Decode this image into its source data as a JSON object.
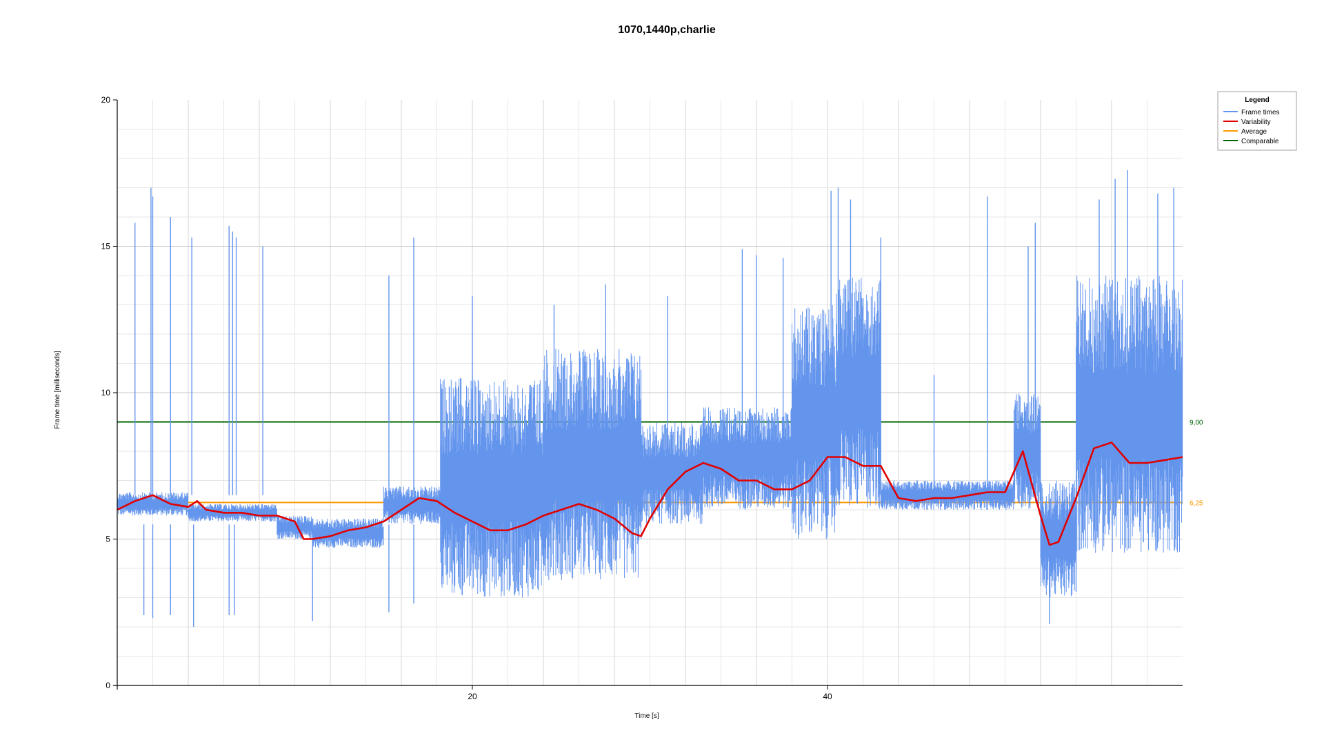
{
  "chart_data": {
    "type": "line",
    "title": "1070,1440p,charlie",
    "xlabel": "Time [s]",
    "ylabel": "Frame time [milliseconds]",
    "xlim": [
      0,
      60
    ],
    "ylim": [
      0,
      20
    ],
    "x_ticks": [
      20,
      40
    ],
    "y_ticks": [
      0,
      5,
      10,
      15,
      20
    ],
    "grid": true,
    "legend": {
      "title": "Legend",
      "placement": "top-right",
      "entries": [
        "Frame times",
        "Variability",
        "Average",
        "Comparable"
      ]
    },
    "series": [
      {
        "name": "Frame times",
        "color": "#6495ED",
        "segments": [
          {
            "x": [
              0,
              4
            ],
            "low": 5.8,
            "high": 6.6
          },
          {
            "x": [
              4,
              9
            ],
            "low": 5.6,
            "high": 6.2
          },
          {
            "x": [
              9,
              11
            ],
            "low": 5.0,
            "high": 5.8
          },
          {
            "x": [
              11,
              15
            ],
            "low": 4.7,
            "high": 5.7
          },
          {
            "x": [
              15,
              18.2
            ],
            "low": 5.5,
            "high": 6.8
          },
          {
            "x": [
              18.2,
              24
            ],
            "low": 3.0,
            "high": 10.5
          },
          {
            "x": [
              24,
              29.5
            ],
            "low": 3.6,
            "high": 11.5
          },
          {
            "x": [
              29.5,
              33
            ],
            "low": 5.5,
            "high": 9.0
          },
          {
            "x": [
              33,
              38
            ],
            "low": 6.0,
            "high": 9.5
          },
          {
            "x": [
              38,
              40.5
            ],
            "low": 5.0,
            "high": 13.0
          },
          {
            "x": [
              40.5,
              43
            ],
            "low": 6.0,
            "high": 14.0
          },
          {
            "x": [
              43,
              50.5
            ],
            "low": 6.0,
            "high": 7.0
          },
          {
            "x": [
              50.5,
              52
            ],
            "low": 6.0,
            "high": 10.0
          },
          {
            "x": [
              52,
              54
            ],
            "low": 3.0,
            "high": 7.0
          },
          {
            "x": [
              54,
              60
            ],
            "low": 4.5,
            "high": 14.0
          }
        ],
        "spikes": [
          {
            "x": 1.0,
            "y": 15.8
          },
          {
            "x": 1.9,
            "y": 17.0
          },
          {
            "x": 2.0,
            "y": 16.7
          },
          {
            "x": 3.0,
            "y": 16.0
          },
          {
            "x": 4.2,
            "y": 15.3
          },
          {
            "x": 6.3,
            "y": 15.7
          },
          {
            "x": 6.5,
            "y": 15.5
          },
          {
            "x": 6.7,
            "y": 15.3
          },
          {
            "x": 8.2,
            "y": 15.0
          },
          {
            "x": 15.3,
            "y": 14.0
          },
          {
            "x": 16.7,
            "y": 15.3
          },
          {
            "x": 20.0,
            "y": 13.3
          },
          {
            "x": 24.6,
            "y": 13.0
          },
          {
            "x": 27.5,
            "y": 13.7
          },
          {
            "x": 31.0,
            "y": 13.3
          },
          {
            "x": 35.2,
            "y": 14.9
          },
          {
            "x": 36.0,
            "y": 14.7
          },
          {
            "x": 37.5,
            "y": 14.6
          },
          {
            "x": 40.2,
            "y": 16.9
          },
          {
            "x": 40.6,
            "y": 17.0
          },
          {
            "x": 41.3,
            "y": 16.6
          },
          {
            "x": 43.0,
            "y": 15.3
          },
          {
            "x": 46.0,
            "y": 10.6
          },
          {
            "x": 49.0,
            "y": 16.7
          },
          {
            "x": 51.3,
            "y": 15.0
          },
          {
            "x": 51.7,
            "y": 15.8
          },
          {
            "x": 55.3,
            "y": 16.6
          },
          {
            "x": 56.2,
            "y": 17.3
          },
          {
            "x": 56.9,
            "y": 17.6
          },
          {
            "x": 58.6,
            "y": 16.8
          },
          {
            "x": 59.5,
            "y": 17.0
          }
        ],
        "dips": [
          {
            "x": 1.5,
            "y": 2.4
          },
          {
            "x": 2.0,
            "y": 2.3
          },
          {
            "x": 3.0,
            "y": 2.4
          },
          {
            "x": 4.3,
            "y": 2.0
          },
          {
            "x": 6.3,
            "y": 2.4
          },
          {
            "x": 6.6,
            "y": 2.4
          },
          {
            "x": 11.0,
            "y": 2.2
          },
          {
            "x": 15.3,
            "y": 2.5
          },
          {
            "x": 16.7,
            "y": 2.8
          },
          {
            "x": 52.5,
            "y": 2.1
          },
          {
            "x": 54.0,
            "y": 3.2
          }
        ]
      },
      {
        "name": "Variability",
        "color": "#E00000",
        "x": [
          0,
          1,
          2,
          3,
          4,
          4.5,
          5,
          6,
          7,
          8,
          9,
          10,
          10.5,
          11,
          12,
          13,
          14,
          15,
          16,
          17,
          18,
          19,
          20,
          21,
          22,
          23,
          24,
          25,
          26,
          27,
          28,
          29,
          29.5,
          30,
          31,
          32,
          33,
          34,
          35,
          36,
          37,
          38,
          39,
          40,
          41,
          42,
          43,
          44,
          45,
          46,
          47,
          48,
          49,
          50,
          51,
          52,
          52.5,
          53,
          54,
          55,
          56,
          57,
          58,
          59,
          60
        ],
        "y": [
          6.0,
          6.3,
          6.5,
          6.2,
          6.1,
          6.3,
          6.0,
          5.9,
          5.9,
          5.8,
          5.8,
          5.6,
          5.0,
          5.0,
          5.1,
          5.3,
          5.4,
          5.6,
          6.0,
          6.4,
          6.3,
          5.9,
          5.6,
          5.3,
          5.3,
          5.5,
          5.8,
          6.0,
          6.2,
          6.0,
          5.7,
          5.2,
          5.1,
          5.7,
          6.7,
          7.3,
          7.6,
          7.4,
          7.0,
          7.0,
          6.7,
          6.7,
          7.0,
          7.8,
          7.8,
          7.5,
          7.5,
          6.4,
          6.3,
          6.4,
          6.4,
          6.5,
          6.6,
          6.6,
          8.0,
          5.8,
          4.8,
          4.9,
          6.4,
          8.1,
          8.3,
          7.6,
          7.6,
          7.7,
          7.8
        ]
      },
      {
        "name": "Average",
        "color": "#FF9900",
        "value": 6.25,
        "label": "6,25"
      },
      {
        "name": "Comparable",
        "color": "#006400",
        "value": 9.0,
        "label": "9,00"
      }
    ]
  }
}
